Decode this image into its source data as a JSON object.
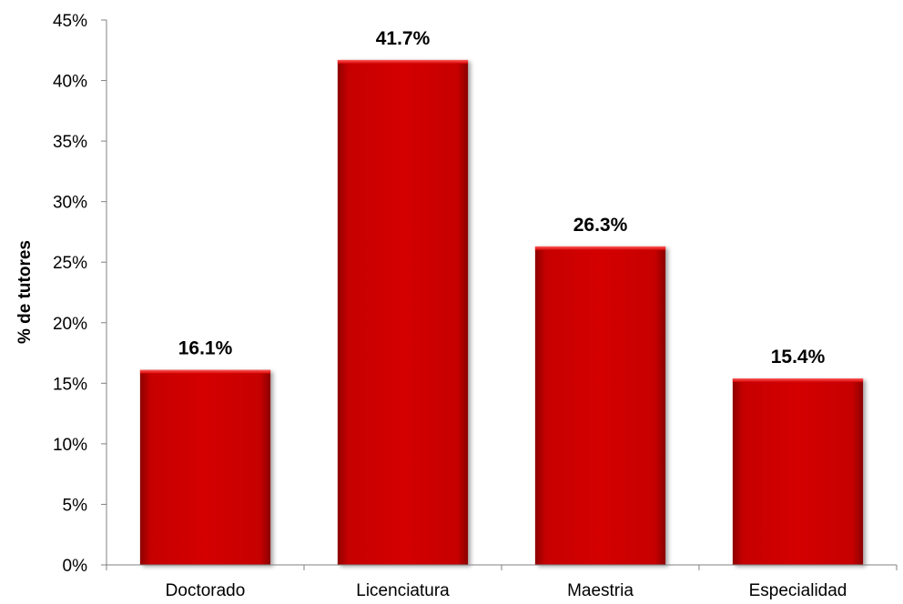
{
  "chart_data": {
    "type": "bar",
    "categories": [
      "Doctorado",
      "Licenciatura",
      "Maestria",
      "Especialidad"
    ],
    "values": [
      16.1,
      41.7,
      26.3,
      15.4
    ],
    "data_labels": [
      "16.1%",
      "41.7%",
      "26.3%",
      "15.4%"
    ],
    "title": "",
    "xlabel": "",
    "ylabel": "% de tutores",
    "ylim": [
      0,
      45
    ],
    "y_ticks": [
      0,
      5,
      10,
      15,
      20,
      25,
      30,
      35,
      40,
      45
    ],
    "y_tick_labels": [
      "0%",
      "5%",
      "10%",
      "15%",
      "20%",
      "25%",
      "30%",
      "35%",
      "40%",
      "45%"
    ],
    "grid": false,
    "legend": "none",
    "bar_color": "#d10000"
  }
}
